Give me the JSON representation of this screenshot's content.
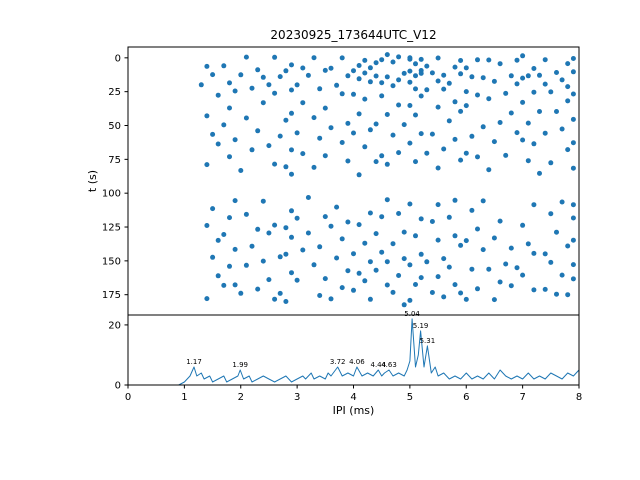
{
  "title": "20230925_173644UTC_V12",
  "colors": {
    "accent": "#1f77b4",
    "axis": "#000000",
    "background": "#ffffff"
  },
  "chart_data": [
    {
      "type": "scatter",
      "title": "20230925_173644UTC_V12",
      "xlabel": "",
      "ylabel": "t (s)",
      "xlim": [
        0,
        8
      ],
      "ylim": [
        190,
        -8
      ],
      "y_axis_inverted": true,
      "yticks": [
        0,
        25,
        50,
        75,
        100,
        125,
        150,
        175
      ],
      "xticks": [
        0,
        1,
        2,
        3,
        4,
        5,
        6,
        7,
        8
      ],
      "rows": [
        {
          "t": 0,
          "x": [
            2.1,
            3.3,
            4.2,
            4.6,
            5.0,
            5.2,
            5.9,
            6.4,
            7.0,
            7.9
          ]
        },
        {
          "t": 2,
          "x": [
            2.6,
            3.8,
            4.4,
            4.8,
            5.1,
            5.5,
            6.9,
            7.4
          ]
        },
        {
          "t": 4,
          "x": [
            1.4,
            2.9,
            4.1,
            4.5,
            5.0,
            5.3,
            6.2,
            7.8
          ]
        },
        {
          "t": 6,
          "x": [
            2.3,
            3.5,
            4.3,
            4.7,
            5.2,
            6.0,
            6.6,
            7.2
          ]
        },
        {
          "t": 8,
          "x": [
            1.7,
            3.1,
            4.0,
            4.9,
            5.4,
            5.8,
            7.6
          ]
        },
        {
          "t": 10,
          "x": [
            2.8,
            3.6,
            4.2,
            5.1,
            5.6,
            6.8,
            7.3
          ]
        },
        {
          "t": 12,
          "x": [
            1.5,
            2.4,
            3.9,
            4.6,
            5.0,
            5.9,
            7.0,
            7.9
          ]
        },
        {
          "t": 14,
          "x": [
            2.0,
            3.2,
            4.4,
            5.2,
            6.3,
            7.7
          ]
        },
        {
          "t": 16,
          "x": [
            1.8,
            2.7,
            4.1,
            4.8,
            5.5,
            6.1,
            7.1
          ]
        },
        {
          "t": 18,
          "x": [
            2.5,
            3.7,
            4.5,
            5.0,
            5.7,
            6.9,
            7.8
          ]
        },
        {
          "t": 20,
          "x": [
            1.3,
            3.0,
            4.3,
            5.3,
            6.5,
            7.4
          ]
        },
        {
          "t": 22,
          "x": [
            2.2,
            3.4,
            4.7,
            5.1,
            6.0,
            7.2
          ]
        },
        {
          "t": 24,
          "x": [
            1.9,
            2.9,
            4.0,
            5.6,
            6.7,
            7.9
          ]
        },
        {
          "t": 27,
          "x": [
            2.6,
            3.8,
            5.2,
            6.2,
            7.5
          ]
        },
        {
          "t": 30,
          "x": [
            1.6,
            3.1,
            4.5,
            5.8,
            7.0
          ]
        },
        {
          "t": 33,
          "x": [
            2.4,
            4.2,
            5.0,
            6.4,
            7.8
          ]
        },
        {
          "t": 36,
          "x": [
            1.8,
            3.5,
            4.8,
            6.0,
            7.3
          ]
        },
        {
          "t": 39,
          "x": [
            2.9,
            4.1,
            5.5,
            6.8
          ]
        },
        {
          "t": 42,
          "x": [
            1.4,
            3.3,
            4.6,
            5.9,
            7.6
          ]
        },
        {
          "t": 45,
          "x": [
            2.1,
            3.9,
            5.1,
            6.6,
            7.9
          ]
        },
        {
          "t": 48,
          "x": [
            1.7,
            2.8,
            4.4,
            5.7,
            7.1
          ]
        },
        {
          "t": 51,
          "x": [
            2.3,
            3.6,
            4.9,
            6.3,
            7.7
          ]
        },
        {
          "t": 54,
          "x": [
            1.5,
            3.0,
            4.3,
            5.4,
            6.9
          ]
        },
        {
          "t": 57,
          "x": [
            2.7,
            4.0,
            5.2,
            6.1,
            7.4
          ]
        },
        {
          "t": 60,
          "x": [
            1.9,
            3.4,
            4.7,
            5.8,
            7.0,
            7.9
          ]
        },
        {
          "t": 63,
          "x": [
            2.5,
            3.8,
            5.0,
            6.5
          ]
        },
        {
          "t": 66,
          "x": [
            1.6,
            2.9,
            4.2,
            5.6,
            7.2
          ]
        },
        {
          "t": 69,
          "x": [
            2.2,
            3.5,
            4.8,
            6.0,
            7.8
          ]
        },
        {
          "t": 72,
          "x": [
            1.8,
            3.1,
            4.5,
            5.3,
            6.7
          ]
        },
        {
          "t": 75,
          "x": [
            2.6,
            3.9,
            5.1,
            6.2,
            7.5
          ]
        },
        {
          "t": 78,
          "x": [
            1.4,
            2.8,
            4.4,
            5.9,
            7.1
          ]
        },
        {
          "t": 81,
          "x": [
            2.0,
            3.3,
            4.6,
            6.4,
            7.9
          ]
        },
        {
          "t": 84,
          "x": [
            2.9,
            4.1,
            5.5,
            7.3
          ]
        },
        {
          "t": 105,
          "x": [
            1.9,
            3.2,
            4.6,
            5.8,
            7.7
          ]
        },
        {
          "t": 108,
          "x": [
            2.4,
            3.7,
            5.0,
            6.3,
            7.9
          ]
        },
        {
          "t": 111,
          "x": [
            1.5,
            2.9,
            4.3,
            5.5,
            7.2
          ]
        },
        {
          "t": 114,
          "x": [
            2.1,
            3.5,
            4.8,
            6.1
          ]
        },
        {
          "t": 117,
          "x": [
            1.8,
            3.0,
            4.5,
            5.7,
            7.5
          ]
        },
        {
          "t": 120,
          "x": [
            2.6,
            3.9,
            5.2,
            6.6,
            7.9
          ]
        },
        {
          "t": 123,
          "x": [
            1.4,
            2.8,
            4.1,
            5.4,
            7.0
          ]
        },
        {
          "t": 126,
          "x": [
            2.3,
            3.6,
            4.9,
            6.2
          ]
        },
        {
          "t": 129,
          "x": [
            1.7,
            3.2,
            4.4,
            5.8,
            7.6
          ]
        },
        {
          "t": 132,
          "x": [
            2.5,
            3.8,
            5.1,
            6.5,
            7.9
          ]
        },
        {
          "t": 135,
          "x": [
            1.6,
            2.9,
            4.2,
            5.5,
            7.1
          ]
        },
        {
          "t": 138,
          "x": [
            2.2,
            3.4,
            4.7,
            6.0,
            7.8
          ]
        },
        {
          "t": 141,
          "x": [
            1.9,
            3.1,
            4.5,
            5.9,
            6.8
          ]
        },
        {
          "t": 144,
          "x": [
            2.7,
            4.0,
            5.2,
            6.3,
            7.4
          ]
        },
        {
          "t": 147,
          "x": [
            1.5,
            2.8,
            4.3,
            5.6,
            7.2
          ]
        },
        {
          "t": 150,
          "x": [
            2.4,
            3.7,
            4.9,
            5.3,
            6.7,
            7.9
          ]
        },
        {
          "t": 153,
          "x": [
            1.8,
            3.3,
            4.6,
            5.0,
            6.1,
            7.5
          ]
        },
        {
          "t": 156,
          "x": [
            2.1,
            3.9,
            4.4,
            5.7,
            6.9
          ]
        },
        {
          "t": 159,
          "x": [
            1.6,
            2.9,
            4.1,
            5.2,
            6.4,
            7.7
          ]
        },
        {
          "t": 162,
          "x": [
            2.5,
            3.5,
            4.8,
            5.5,
            7.0
          ]
        },
        {
          "t": 165,
          "x": [
            1.9,
            3.0,
            4.2,
            5.8,
            6.6,
            7.9
          ]
        },
        {
          "t": 168,
          "x": [
            2.3,
            3.8,
            4.6,
            5.1,
            6.2,
            7.4
          ]
        },
        {
          "t": 171,
          "x": [
            1.7,
            2.7,
            4.0,
            5.4,
            6.8
          ]
        },
        {
          "t": 174,
          "x": [
            2.0,
            3.4,
            4.7,
            5.9,
            7.2,
            7.8
          ]
        },
        {
          "t": 177,
          "x": [
            1.4,
            2.6,
            4.3,
            5.0,
            6.0,
            7.6
          ]
        },
        {
          "t": 179,
          "x": [
            2.8,
            3.6,
            4.9,
            5.6,
            6.5
          ]
        }
      ]
    },
    {
      "type": "line",
      "xlabel": "IPI (ms)",
      "ylabel": "",
      "xlim": [
        0,
        8
      ],
      "ylim": [
        0,
        23.3
      ],
      "yticks": [
        0,
        20
      ],
      "xticks": [
        0,
        1,
        2,
        3,
        4,
        5,
        6,
        7,
        8
      ],
      "points": [
        [
          0,
          0
        ],
        [
          0.9,
          0
        ],
        [
          1.0,
          1
        ],
        [
          1.05,
          2
        ],
        [
          1.1,
          3
        ],
        [
          1.17,
          6
        ],
        [
          1.22,
          3
        ],
        [
          1.3,
          4
        ],
        [
          1.35,
          2
        ],
        [
          1.45,
          3
        ],
        [
          1.5,
          1
        ],
        [
          1.6,
          2
        ],
        [
          1.7,
          3
        ],
        [
          1.75,
          1
        ],
        [
          1.85,
          2
        ],
        [
          1.95,
          3
        ],
        [
          1.99,
          5
        ],
        [
          2.05,
          2
        ],
        [
          2.15,
          3
        ],
        [
          2.2,
          1
        ],
        [
          2.3,
          2
        ],
        [
          2.4,
          3
        ],
        [
          2.5,
          2
        ],
        [
          2.6,
          1
        ],
        [
          2.7,
          2
        ],
        [
          2.8,
          3
        ],
        [
          2.9,
          1
        ],
        [
          3.0,
          2
        ],
        [
          3.1,
          3
        ],
        [
          3.15,
          2
        ],
        [
          3.25,
          4
        ],
        [
          3.3,
          2
        ],
        [
          3.4,
          3
        ],
        [
          3.5,
          2
        ],
        [
          3.55,
          4
        ],
        [
          3.6,
          3
        ],
        [
          3.72,
          6
        ],
        [
          3.8,
          3
        ],
        [
          3.9,
          4
        ],
        [
          4.0,
          3
        ],
        [
          4.06,
          6
        ],
        [
          4.15,
          3
        ],
        [
          4.25,
          4
        ],
        [
          4.35,
          3
        ],
        [
          4.44,
          5
        ],
        [
          4.5,
          3
        ],
        [
          4.55,
          4
        ],
        [
          4.63,
          5
        ],
        [
          4.7,
          3
        ],
        [
          4.8,
          4
        ],
        [
          4.9,
          3
        ],
        [
          4.95,
          5
        ],
        [
          5.0,
          8
        ],
        [
          5.04,
          22
        ],
        [
          5.1,
          6
        ],
        [
          5.15,
          10
        ],
        [
          5.19,
          18
        ],
        [
          5.25,
          6
        ],
        [
          5.31,
          13
        ],
        [
          5.38,
          4
        ],
        [
          5.45,
          6
        ],
        [
          5.5,
          3
        ],
        [
          5.6,
          4
        ],
        [
          5.7,
          2
        ],
        [
          5.8,
          3
        ],
        [
          5.9,
          2
        ],
        [
          6.0,
          4
        ],
        [
          6.1,
          2
        ],
        [
          6.2,
          3
        ],
        [
          6.3,
          2
        ],
        [
          6.4,
          4
        ],
        [
          6.5,
          2
        ],
        [
          6.6,
          5
        ],
        [
          6.7,
          3
        ],
        [
          6.8,
          2
        ],
        [
          6.9,
          3
        ],
        [
          7.0,
          2
        ],
        [
          7.1,
          4
        ],
        [
          7.2,
          2
        ],
        [
          7.3,
          3
        ],
        [
          7.4,
          2
        ],
        [
          7.5,
          4
        ],
        [
          7.6,
          3
        ],
        [
          7.7,
          2
        ],
        [
          7.8,
          4
        ],
        [
          7.9,
          3
        ],
        [
          8.0,
          5
        ]
      ],
      "annotations": [
        {
          "x": 1.17,
          "y": 6,
          "label": "1.17"
        },
        {
          "x": 1.99,
          "y": 5,
          "label": "1.99"
        },
        {
          "x": 3.72,
          "y": 6,
          "label": "3.72"
        },
        {
          "x": 4.06,
          "y": 6,
          "label": "4.06"
        },
        {
          "x": 4.44,
          "y": 5,
          "label": "4.44"
        },
        {
          "x": 4.63,
          "y": 5,
          "label": "4.63"
        },
        {
          "x": 5.04,
          "y": 22,
          "label": "5.04"
        },
        {
          "x": 5.19,
          "y": 18,
          "label": "5.19"
        },
        {
          "x": 5.31,
          "y": 13,
          "label": "5.31"
        }
      ]
    }
  ]
}
